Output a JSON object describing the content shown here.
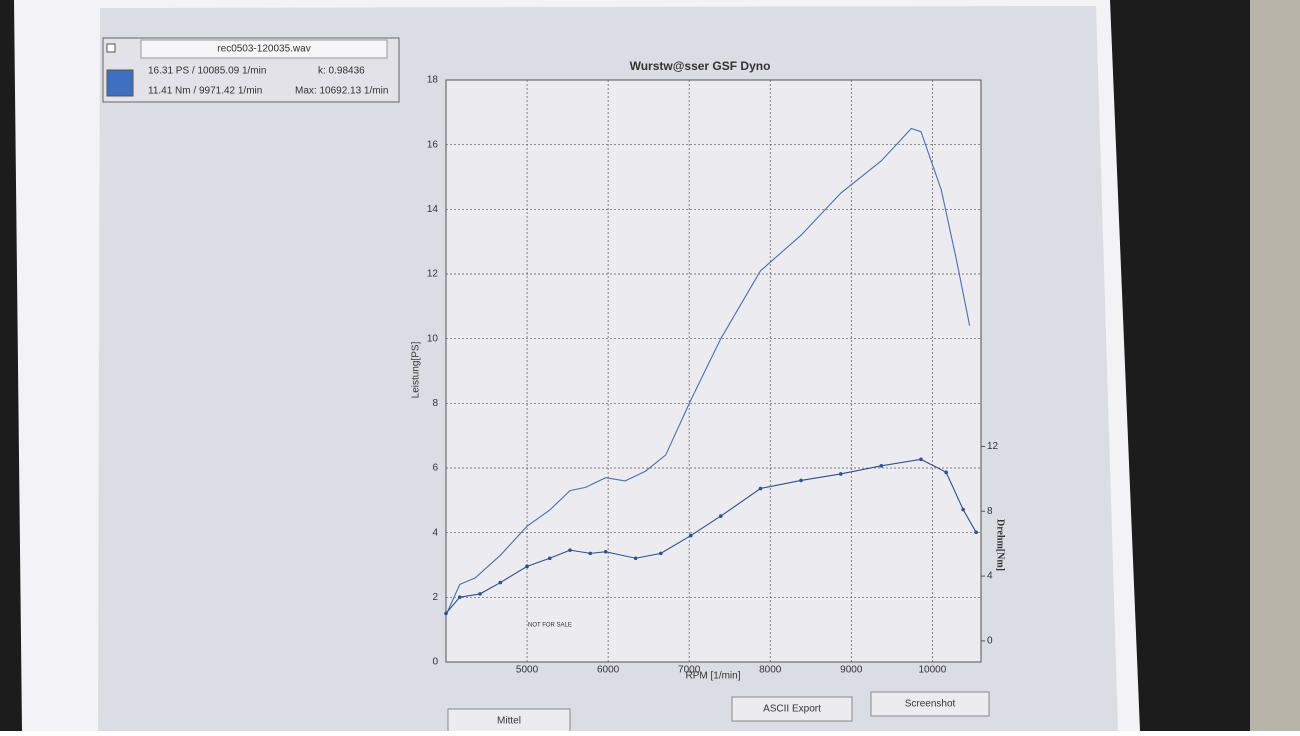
{
  "chart_data": {
    "type": "line",
    "title": "Wurstw@sser GSF Dyno",
    "x_label": "RPM [1/min]",
    "y_label": "Leistung[PS]",
    "y2_label": "Drehm[Nm]",
    "annotation": "NOT FOR SALE",
    "xlim": [
      4000,
      10600
    ],
    "xticks": [
      5000,
      6000,
      7000,
      8000,
      9000,
      10000
    ],
    "ylim": [
      0,
      18
    ],
    "yticks": [
      0,
      2,
      4,
      6,
      8,
      10,
      12,
      14,
      16,
      18
    ],
    "y2lim": [
      -1.3,
      34.6
    ],
    "y2ticks": [
      0,
      4,
      8,
      12
    ],
    "grid": true,
    "series": [
      {
        "color": "#4a6fb0",
        "markers": false,
        "x": [
          4000,
          4170,
          4360,
          4670,
          5000,
          5280,
          5530,
          5720,
          5970,
          6210,
          6460,
          6710,
          7020,
          7390,
          7880,
          8380,
          8870,
          9370,
          9740,
          9860,
          10110,
          10300,
          10460
        ],
        "values": [
          1.45,
          2.4,
          2.6,
          3.3,
          4.2,
          4.7,
          5.3,
          5.4,
          5.7,
          5.6,
          5.9,
          6.4,
          8.1,
          10.0,
          12.1,
          13.2,
          14.5,
          15.5,
          16.5,
          16.4,
          14.6,
          12.4,
          10.4
        ]
      },
      {
        "color": "#2f4f8f",
        "markers": true,
        "axis": "y2",
        "x": [
          4000,
          4170,
          4420,
          4670,
          5000,
          5280,
          5530,
          5780,
          5970,
          6340,
          6650,
          7020,
          7390,
          7880,
          8380,
          8870,
          9370,
          9860,
          10170,
          10380,
          10540
        ],
        "values": [
          1.7,
          2.7,
          2.9,
          3.6,
          4.6,
          5.1,
          5.6,
          5.4,
          5.5,
          5.1,
          5.4,
          6.5,
          7.7,
          9.4,
          9.9,
          10.3,
          10.8,
          11.2,
          10.4,
          8.1,
          6.7
        ]
      }
    ]
  },
  "panel": {
    "file": "rec0503-120035.wav",
    "power_peak": "16.31 PS / 10085.09 1/min",
    "k": "k: 0.98436",
    "torque_peak": "11.41 Nm / 9971.42 1/min",
    "max": "Max: 10692.13 1/min",
    "swatch_color": "#3f6fc0"
  },
  "buttons": [
    "Mittel",
    "ASCII Export",
    "Screenshot"
  ]
}
